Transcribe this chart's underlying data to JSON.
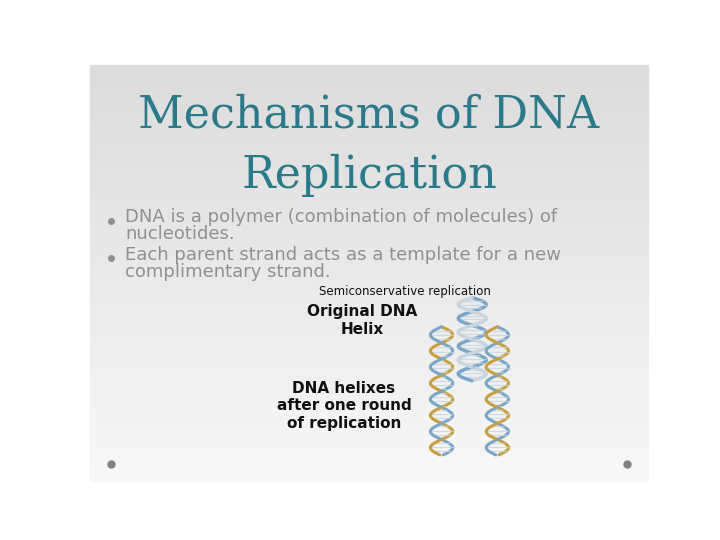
{
  "title_line1": "Mechanisms of DNA",
  "title_line2": "Replication",
  "title_color": "#2B7A8A",
  "title_fontsize": 32,
  "bullet_color": "#909090",
  "bullet_fontsize": 13,
  "bullet1_line1": "DNA is a polymer (combination of molecules) of",
  "bullet1_line2": "nucleotides.",
  "bullet2_line1": "Each parent strand acts as a template for a new",
  "bullet2_line2": "complimentary strand.",
  "semiconservative_label": "Semiconservative replication",
  "original_label": "Original DNA\nHelix",
  "dna_helixes_label": "DNA helixes\nafter one round\nof replication",
  "dot_color": "#808080",
  "strand_blue": "#7BA7C7",
  "strand_gold": "#C8A040",
  "strand_light": "#c8d4de"
}
